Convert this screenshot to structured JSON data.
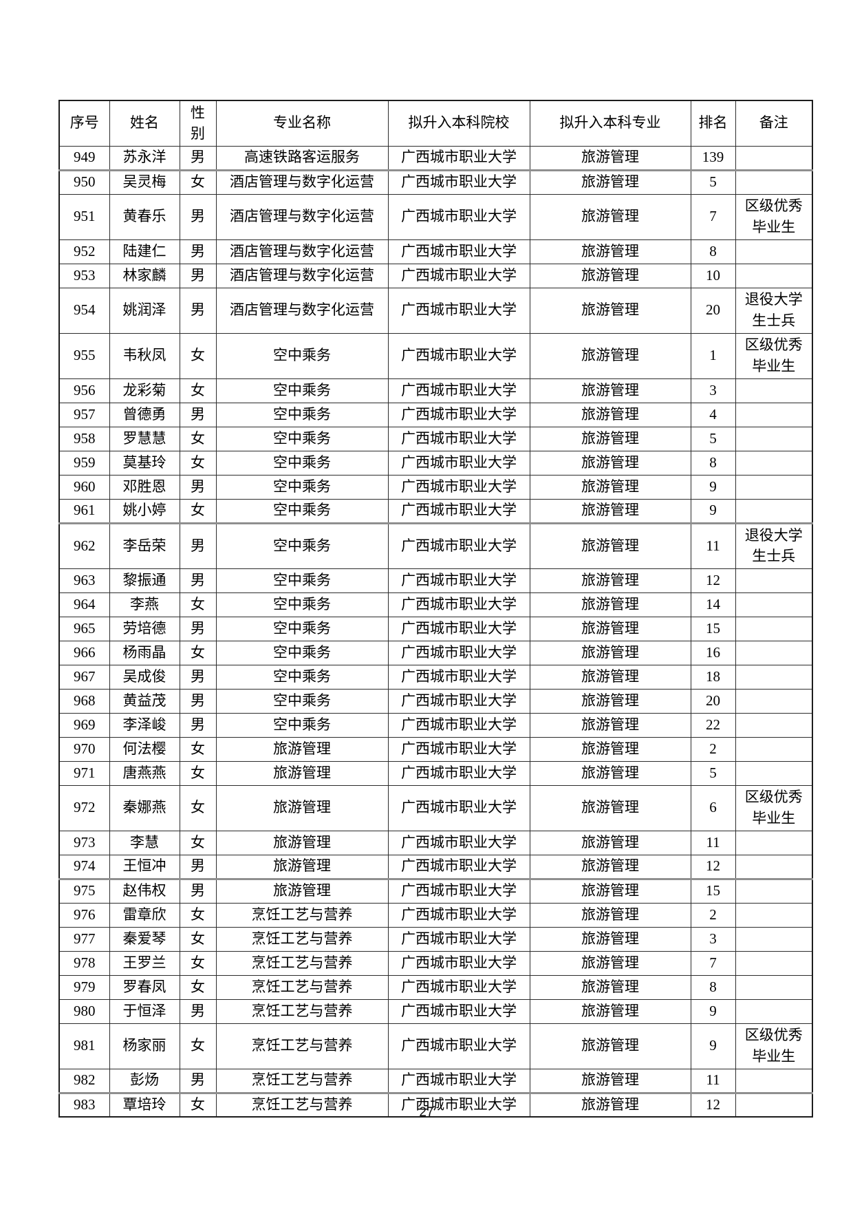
{
  "page": {
    "number": "27"
  },
  "table": {
    "headers": [
      "序号",
      "姓名",
      "性别",
      "专业名称",
      "拟升入本科院校",
      "拟升入本科专业",
      "排名",
      "备注"
    ],
    "rows": [
      {
        "no": "949",
        "name": "苏永洋",
        "gender": "男",
        "major": "高速铁路客运服务",
        "college": "广西城市职业大学",
        "target_major": "旅游管理",
        "rank": "139",
        "remark": ""
      },
      {
        "no": "950",
        "name": "吴灵梅",
        "gender": "女",
        "major": "酒店管理与数字化运营",
        "college": "广西城市职业大学",
        "target_major": "旅游管理",
        "rank": "5",
        "remark": ""
      },
      {
        "no": "951",
        "name": "黄春乐",
        "gender": "男",
        "major": "酒店管理与数字化运营",
        "college": "广西城市职业大学",
        "target_major": "旅游管理",
        "rank": "7",
        "remark": "区级优秀毕业生"
      },
      {
        "no": "952",
        "name": "陆建仁",
        "gender": "男",
        "major": "酒店管理与数字化运营",
        "college": "广西城市职业大学",
        "target_major": "旅游管理",
        "rank": "8",
        "remark": ""
      },
      {
        "no": "953",
        "name": "林家麟",
        "gender": "男",
        "major": "酒店管理与数字化运营",
        "college": "广西城市职业大学",
        "target_major": "旅游管理",
        "rank": "10",
        "remark": ""
      },
      {
        "no": "954",
        "name": "姚润泽",
        "gender": "男",
        "major": "酒店管理与数字化运营",
        "college": "广西城市职业大学",
        "target_major": "旅游管理",
        "rank": "20",
        "remark": "退役大学生士兵"
      },
      {
        "no": "955",
        "name": "韦秋凤",
        "gender": "女",
        "major": "空中乘务",
        "college": "广西城市职业大学",
        "target_major": "旅游管理",
        "rank": "1",
        "remark": "区级优秀毕业生"
      },
      {
        "no": "956",
        "name": "龙彩菊",
        "gender": "女",
        "major": "空中乘务",
        "college": "广西城市职业大学",
        "target_major": "旅游管理",
        "rank": "3",
        "remark": ""
      },
      {
        "no": "957",
        "name": "曾德勇",
        "gender": "男",
        "major": "空中乘务",
        "college": "广西城市职业大学",
        "target_major": "旅游管理",
        "rank": "4",
        "remark": ""
      },
      {
        "no": "958",
        "name": "罗慧慧",
        "gender": "女",
        "major": "空中乘务",
        "college": "广西城市职业大学",
        "target_major": "旅游管理",
        "rank": "5",
        "remark": ""
      },
      {
        "no": "959",
        "name": "莫基玲",
        "gender": "女",
        "major": "空中乘务",
        "college": "广西城市职业大学",
        "target_major": "旅游管理",
        "rank": "8",
        "remark": ""
      },
      {
        "no": "960",
        "name": "邓胜恩",
        "gender": "男",
        "major": "空中乘务",
        "college": "广西城市职业大学",
        "target_major": "旅游管理",
        "rank": "9",
        "remark": ""
      },
      {
        "no": "961",
        "name": "姚小婷",
        "gender": "女",
        "major": "空中乘务",
        "college": "广西城市职业大学",
        "target_major": "旅游管理",
        "rank": "9",
        "remark": ""
      },
      {
        "no": "962",
        "name": "李岳荣",
        "gender": "男",
        "major": "空中乘务",
        "college": "广西城市职业大学",
        "target_major": "旅游管理",
        "rank": "11",
        "remark": "退役大学生士兵"
      },
      {
        "no": "963",
        "name": "黎振通",
        "gender": "男",
        "major": "空中乘务",
        "college": "广西城市职业大学",
        "target_major": "旅游管理",
        "rank": "12",
        "remark": ""
      },
      {
        "no": "964",
        "name": "李燕",
        "gender": "女",
        "major": "空中乘务",
        "college": "广西城市职业大学",
        "target_major": "旅游管理",
        "rank": "14",
        "remark": ""
      },
      {
        "no": "965",
        "name": "劳培德",
        "gender": "男",
        "major": "空中乘务",
        "college": "广西城市职业大学",
        "target_major": "旅游管理",
        "rank": "15",
        "remark": ""
      },
      {
        "no": "966",
        "name": "杨雨晶",
        "gender": "女",
        "major": "空中乘务",
        "college": "广西城市职业大学",
        "target_major": "旅游管理",
        "rank": "16",
        "remark": ""
      },
      {
        "no": "967",
        "name": "吴成俊",
        "gender": "男",
        "major": "空中乘务",
        "college": "广西城市职业大学",
        "target_major": "旅游管理",
        "rank": "18",
        "remark": ""
      },
      {
        "no": "968",
        "name": "黄益茂",
        "gender": "男",
        "major": "空中乘务",
        "college": "广西城市职业大学",
        "target_major": "旅游管理",
        "rank": "20",
        "remark": ""
      },
      {
        "no": "969",
        "name": "李泽峻",
        "gender": "男",
        "major": "空中乘务",
        "college": "广西城市职业大学",
        "target_major": "旅游管理",
        "rank": "22",
        "remark": ""
      },
      {
        "no": "970",
        "name": "何法樱",
        "gender": "女",
        "major": "旅游管理",
        "college": "广西城市职业大学",
        "target_major": "旅游管理",
        "rank": "2",
        "remark": ""
      },
      {
        "no": "971",
        "name": "唐燕燕",
        "gender": "女",
        "major": "旅游管理",
        "college": "广西城市职业大学",
        "target_major": "旅游管理",
        "rank": "5",
        "remark": ""
      },
      {
        "no": "972",
        "name": "秦娜燕",
        "gender": "女",
        "major": "旅游管理",
        "college": "广西城市职业大学",
        "target_major": "旅游管理",
        "rank": "6",
        "remark": "区级优秀毕业生"
      },
      {
        "no": "973",
        "name": "李慧",
        "gender": "女",
        "major": "旅游管理",
        "college": "广西城市职业大学",
        "target_major": "旅游管理",
        "rank": "11",
        "remark": ""
      },
      {
        "no": "974",
        "name": "王恒冲",
        "gender": "男",
        "major": "旅游管理",
        "college": "广西城市职业大学",
        "target_major": "旅游管理",
        "rank": "12",
        "remark": ""
      },
      {
        "no": "975",
        "name": "赵伟权",
        "gender": "男",
        "major": "旅游管理",
        "college": "广西城市职业大学",
        "target_major": "旅游管理",
        "rank": "15",
        "remark": ""
      },
      {
        "no": "976",
        "name": "雷章欣",
        "gender": "女",
        "major": "烹饪工艺与营养",
        "college": "广西城市职业大学",
        "target_major": "旅游管理",
        "rank": "2",
        "remark": ""
      },
      {
        "no": "977",
        "name": "秦爱琴",
        "gender": "女",
        "major": "烹饪工艺与营养",
        "college": "广西城市职业大学",
        "target_major": "旅游管理",
        "rank": "3",
        "remark": ""
      },
      {
        "no": "978",
        "name": "王罗兰",
        "gender": "女",
        "major": "烹饪工艺与营养",
        "college": "广西城市职业大学",
        "target_major": "旅游管理",
        "rank": "7",
        "remark": ""
      },
      {
        "no": "979",
        "name": "罗春凤",
        "gender": "女",
        "major": "烹饪工艺与营养",
        "college": "广西城市职业大学",
        "target_major": "旅游管理",
        "rank": "8",
        "remark": ""
      },
      {
        "no": "980",
        "name": "于恒泽",
        "gender": "男",
        "major": "烹饪工艺与营养",
        "college": "广西城市职业大学",
        "target_major": "旅游管理",
        "rank": "9",
        "remark": ""
      },
      {
        "no": "981",
        "name": "杨家丽",
        "gender": "女",
        "major": "烹饪工艺与营养",
        "college": "广西城市职业大学",
        "target_major": "旅游管理",
        "rank": "9",
        "remark": "区级优秀毕业生"
      },
      {
        "no": "982",
        "name": "彭炀",
        "gender": "男",
        "major": "烹饪工艺与营养",
        "college": "广西城市职业大学",
        "target_major": "旅游管理",
        "rank": "11",
        "remark": ""
      },
      {
        "no": "983",
        "name": "覃培玲",
        "gender": "女",
        "major": "烹饪工艺与营养",
        "college": "广西城市职业大学",
        "target_major": "旅游管理",
        "rank": "12",
        "remark": ""
      }
    ]
  }
}
